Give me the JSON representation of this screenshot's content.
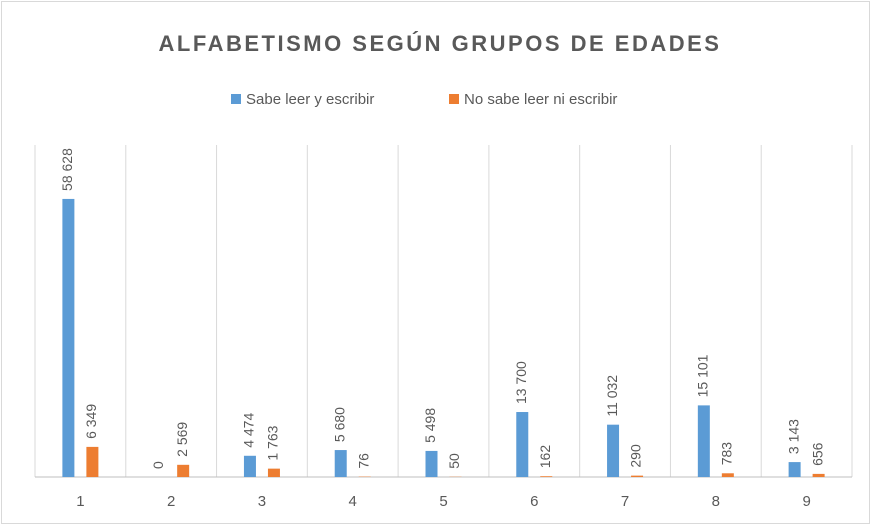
{
  "chart_data": {
    "type": "bar",
    "title": "ALFABETISMO SEGÚN GRUPOS DE EDADES",
    "categories": [
      "1",
      "2",
      "3",
      "4",
      "5",
      "6",
      "7",
      "8",
      "9"
    ],
    "series": [
      {
        "name": "Sabe leer y escribir",
        "color": "#5b9bd5",
        "values": [
          58628,
          0,
          4474,
          5680,
          5498,
          13700,
          11032,
          15101,
          3143
        ],
        "value_labels": [
          "58 628",
          "0",
          "4 474",
          "5 680",
          "5 498",
          "13 700",
          "11 032",
          "15 101",
          "3 143"
        ]
      },
      {
        "name": "No sabe leer ni escribir",
        "color": "#ed7d31",
        "values": [
          6349,
          2569,
          1763,
          76,
          50,
          162,
          290,
          783,
          656
        ],
        "value_labels": [
          "6 349",
          "2 569",
          "1 763",
          "76",
          "50",
          "162",
          "290",
          "783",
          "656"
        ]
      }
    ],
    "ylim": [
      0,
      70000
    ],
    "legend": "top"
  }
}
